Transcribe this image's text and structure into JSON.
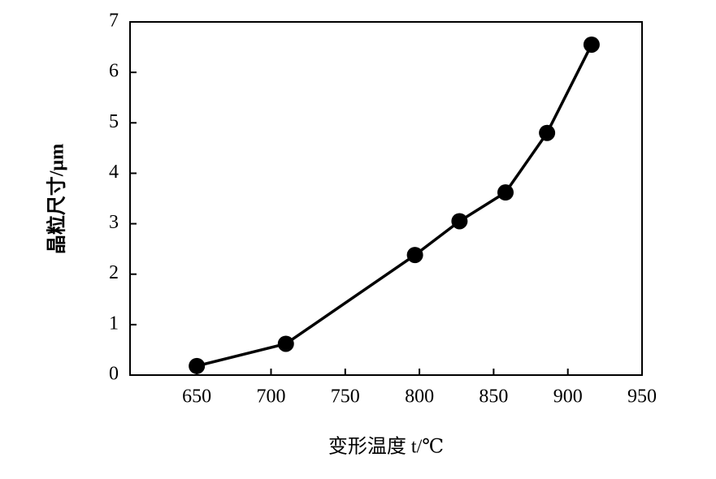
{
  "chart_data": {
    "type": "line",
    "x_label": "变形温度 t/℃",
    "y_label": "晶粒尺寸/μm",
    "x": [
      650,
      710,
      797,
      827,
      858,
      886,
      916
    ],
    "series": [
      {
        "color": "#000000",
        "values": [
          0.18,
          0.62,
          2.38,
          3.05,
          3.62,
          4.8,
          6.55
        ]
      }
    ],
    "xlim": [
      605,
      950
    ],
    "xticks": [
      650,
      700,
      750,
      800,
      850,
      900,
      950
    ],
    "ylim": [
      0,
      7
    ],
    "yticks": [
      0,
      1,
      2,
      3,
      4,
      5,
      6,
      7
    ],
    "grid": false
  }
}
